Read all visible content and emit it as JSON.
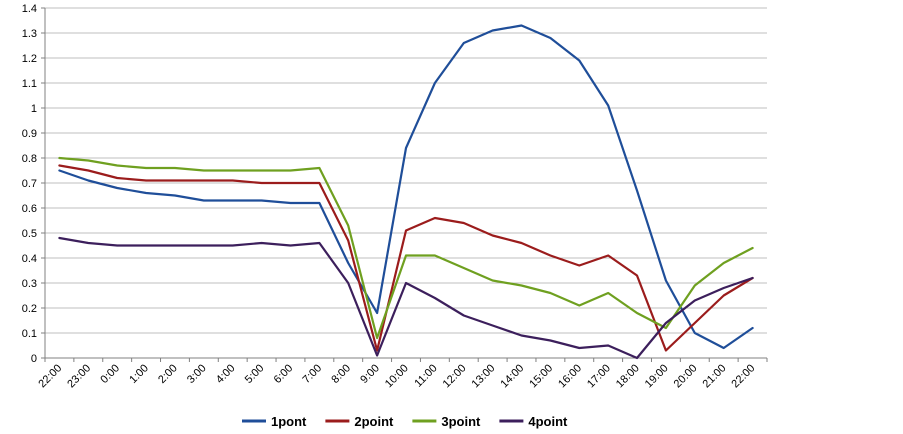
{
  "chart_data": {
    "type": "line",
    "title": "",
    "xlabel": "",
    "ylabel": "",
    "ylim": [
      0,
      1.4
    ],
    "yticks": [
      "0",
      "0.1",
      "0.2",
      "0.3",
      "0.4",
      "0.5",
      "0.6",
      "0.7",
      "0.8",
      "0.9",
      "1",
      "1.1",
      "1.2",
      "1.3",
      "1.4"
    ],
    "grid": true,
    "legend": "bottom",
    "categories": [
      "22:00",
      "23:00",
      "0:00",
      "1:00",
      "2:00",
      "3:00",
      "4:00",
      "5:00",
      "6:00",
      "7:00",
      "8:00",
      "9:00",
      "10:00",
      "11:00",
      "12:00",
      "13:00",
      "14:00",
      "15:00",
      "16:00",
      "17:00",
      "18:00",
      "19:00",
      "20:00",
      "21:00",
      "22:00"
    ],
    "series": [
      {
        "name": "1pont",
        "color": "#1f4e99",
        "values": [
          0.75,
          0.71,
          0.68,
          0.66,
          0.65,
          0.63,
          0.63,
          0.63,
          0.62,
          0.62,
          0.38,
          0.18,
          0.84,
          1.1,
          1.26,
          1.31,
          1.33,
          1.28,
          1.19,
          1.01,
          0.67,
          0.31,
          0.1,
          0.04,
          0.12
        ]
      },
      {
        "name": "2point",
        "color": "#9b1c1c",
        "values": [
          0.77,
          0.75,
          0.72,
          0.71,
          0.71,
          0.71,
          0.71,
          0.7,
          0.7,
          0.7,
          0.47,
          0.03,
          0.51,
          0.56,
          0.54,
          0.49,
          0.46,
          0.41,
          0.37,
          0.41,
          0.33,
          0.03,
          0.14,
          0.25,
          0.32
        ]
      },
      {
        "name": "3point",
        "color": "#6fa020",
        "values": [
          0.8,
          0.79,
          0.77,
          0.76,
          0.76,
          0.75,
          0.75,
          0.75,
          0.75,
          0.76,
          0.53,
          0.08,
          0.41,
          0.41,
          0.36,
          0.31,
          0.29,
          0.26,
          0.21,
          0.26,
          0.18,
          0.12,
          0.29,
          0.38,
          0.44
        ]
      },
      {
        "name": "4point",
        "color": "#3c1f5c",
        "values": [
          0.48,
          0.46,
          0.45,
          0.45,
          0.45,
          0.45,
          0.45,
          0.46,
          0.45,
          0.46,
          0.3,
          0.01,
          0.3,
          0.24,
          0.17,
          0.13,
          0.09,
          0.07,
          0.04,
          0.05,
          0.0,
          0.14,
          0.23,
          0.28,
          0.32
        ]
      }
    ]
  }
}
